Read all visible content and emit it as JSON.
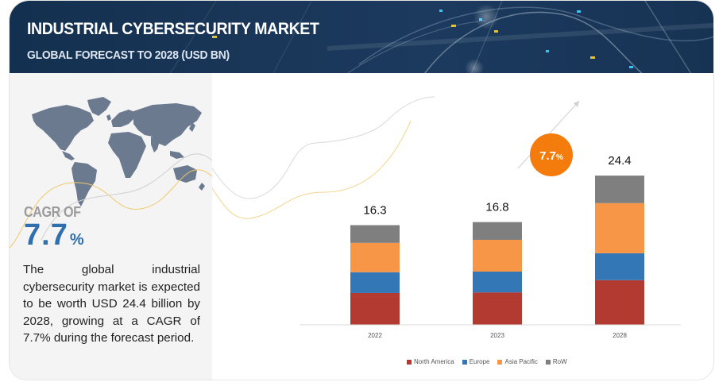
{
  "header": {
    "title": "INDUSTRIAL CYBERSECURITY MARKET",
    "subtitle": "GLOBAL FORECAST TO 2028 (USD BN)"
  },
  "left_panel": {
    "map_icon": "world-map-icon",
    "cagr_label": "CAGR OF",
    "cagr_value": "7.7",
    "cagr_unit": "%",
    "description": "The global industrial cybersecurity market is expected to be worth USD 24.4 billion by 2028, growing at a CAGR of 7.7% during the forecast period."
  },
  "growth_badge": {
    "value": "7.7",
    "unit": "%",
    "color": "#f47c0d"
  },
  "chart_data": {
    "type": "bar",
    "stacked": true,
    "title": "Industrial Cybersecurity Market, Global Forecast to 2028 (USD BN)",
    "xlabel": "",
    "ylabel": "USD BN",
    "categories": [
      "2022",
      "2023",
      "2028"
    ],
    "totals": [
      "16.3",
      "16.8",
      "24.4"
    ],
    "series": [
      {
        "name": "North America",
        "color": "#b33a30",
        "values": [
          5.2,
          5.3,
          7.3
        ]
      },
      {
        "name": "Europe",
        "color": "#3477b6",
        "values": [
          3.4,
          3.4,
          4.4
        ]
      },
      {
        "name": "Asia Pacific",
        "color": "#f79646",
        "values": [
          4.8,
          5.2,
          8.2
        ]
      },
      {
        "name": "RoW",
        "color": "#7f7f7f",
        "values": [
          2.9,
          2.9,
          4.5
        ]
      }
    ],
    "ylim": [
      0,
      26
    ],
    "grid": false,
    "legend": "bottom",
    "annotation": "7.7% CAGR growth arrow"
  }
}
